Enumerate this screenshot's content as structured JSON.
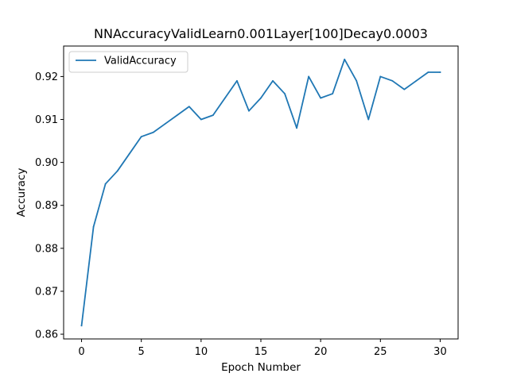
{
  "chart_data": {
    "type": "line",
    "title": "NNAccuracyValidLearn0.001Layer[100]Decay0.0003",
    "xlabel": "Epoch Number",
    "ylabel": "Accuracy",
    "xlim": [
      -1.5,
      31.5
    ],
    "ylim": [
      0.8589,
      0.9271
    ],
    "x_ticks": [
      0,
      5,
      10,
      15,
      20,
      25,
      30
    ],
    "x_tick_labels": [
      "0",
      "5",
      "10",
      "15",
      "20",
      "25",
      "30"
    ],
    "y_ticks": [
      0.86,
      0.87,
      0.88,
      0.89,
      0.9,
      0.91,
      0.92
    ],
    "y_tick_labels": [
      "0.86",
      "0.87",
      "0.88",
      "0.89",
      "0.90",
      "0.91",
      "0.92"
    ],
    "grid": false,
    "legend_position": "top-left",
    "series": [
      {
        "name": "ValidAccuracy",
        "color": "#1f77b4",
        "x": [
          0,
          1,
          2,
          3,
          4,
          5,
          6,
          7,
          8,
          9,
          10,
          11,
          12,
          13,
          14,
          15,
          16,
          17,
          18,
          19,
          20,
          21,
          22,
          23,
          24,
          25,
          26,
          27,
          28,
          29,
          30
        ],
        "y": [
          0.862,
          0.885,
          0.895,
          0.898,
          0.902,
          0.906,
          0.907,
          0.909,
          0.911,
          0.913,
          0.91,
          0.911,
          0.915,
          0.919,
          0.912,
          0.915,
          0.919,
          0.916,
          0.908,
          0.92,
          0.915,
          0.916,
          0.924,
          0.919,
          0.91,
          0.92,
          0.919,
          0.917,
          0.919,
          0.921,
          0.921
        ]
      }
    ]
  }
}
